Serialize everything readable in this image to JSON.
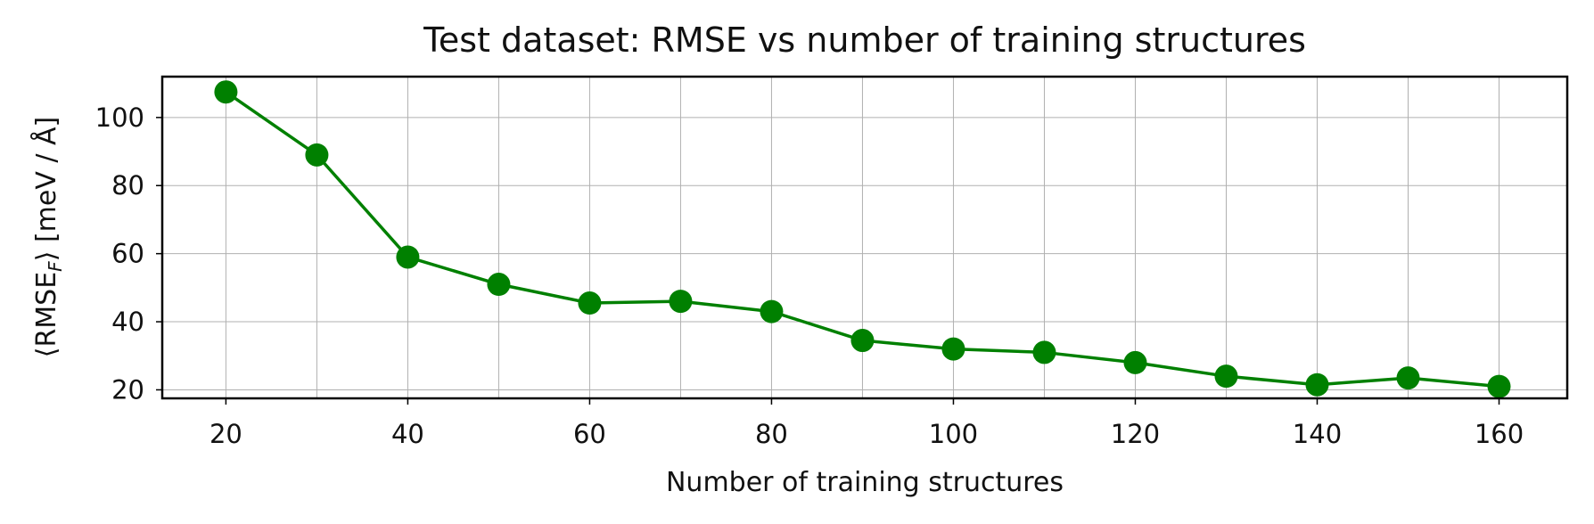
{
  "chart_data": {
    "type": "line",
    "title": "Test dataset: RMSE vs number of training structures",
    "xlabel": "Number of training structures",
    "ylabel": "⟨RMSE_F⟩ [meV / Å]",
    "ylabel_parts": {
      "pre": "⟨RMSE",
      "sub": "F",
      "post": "⟩ [meV / Å]"
    },
    "x": [
      20,
      30,
      40,
      50,
      60,
      70,
      80,
      90,
      100,
      110,
      120,
      130,
      140,
      150,
      160
    ],
    "series": [
      {
        "values": [
          107.5,
          89,
          59,
          51,
          45.5,
          46,
          43,
          34.5,
          32,
          31,
          28,
          24,
          21.5,
          23.5,
          21
        ]
      }
    ],
    "xlim": [
      13,
      167.5
    ],
    "ylim": [
      17.5,
      112
    ],
    "xticks": [
      20,
      40,
      60,
      80,
      100,
      120,
      140,
      160
    ],
    "yticks": [
      20,
      40,
      60,
      80,
      100
    ],
    "grid": true,
    "color": "#008000",
    "marker": "circle"
  }
}
